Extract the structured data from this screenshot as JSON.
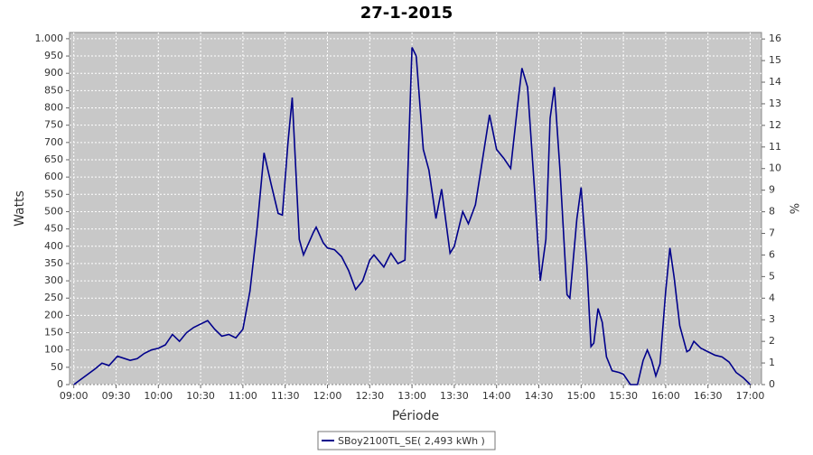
{
  "chart_data": {
    "type": "line",
    "title": "27-1-2015",
    "xlabel": "Période",
    "ylabel": "Watts",
    "y2label": "%",
    "x": [
      "09:00",
      "09:05",
      "09:10",
      "09:15",
      "09:20",
      "09:25",
      "09:31",
      "09:40",
      "09:45",
      "09:50",
      "09:55",
      "10:00",
      "10:05",
      "10:10",
      "10:15",
      "10:20",
      "10:25",
      "10:30",
      "10:35",
      "10:40",
      "10:45",
      "10:50",
      "10:55",
      "11:00",
      "11:05",
      "11:10",
      "11:15",
      "11:20",
      "11:25",
      "11:28",
      "11:32",
      "11:35",
      "11:40",
      "11:43",
      "11:50",
      "11:52",
      "11:57",
      "12:00",
      "12:05",
      "12:10",
      "12:15",
      "12:20",
      "12:25",
      "12:30",
      "12:33",
      "12:40",
      "12:45",
      "12:50",
      "12:55",
      "13:00",
      "13:03",
      "13:08",
      "13:12",
      "13:17",
      "13:21",
      "13:27",
      "13:30",
      "13:36",
      "13:40",
      "13:45",
      "13:50",
      "13:55",
      "14:00",
      "14:05",
      "14:10",
      "14:15",
      "14:18",
      "14:22",
      "14:27",
      "14:31",
      "14:35",
      "14:38",
      "14:41",
      "14:45",
      "14:50",
      "14:52",
      "14:57",
      "15:00",
      "15:04",
      "15:07",
      "15:09",
      "15:12",
      "15:15",
      "15:18",
      "15:22",
      "15:27",
      "15:30",
      "15:35",
      "15:40",
      "15:44",
      "15:47",
      "15:50",
      "15:53",
      "15:56",
      "16:00",
      "16:03",
      "16:06",
      "16:10",
      "16:15",
      "16:17",
      "16:20",
      "16:25",
      "16:30",
      "16:35",
      "16:40",
      "16:45",
      "16:50",
      "16:55",
      "17:00"
    ],
    "series": [
      {
        "name": "SBoy2100TL_SE( 2,493 kWh )",
        "color": "#00008b",
        "values": [
          0,
          15,
          30,
          45,
          62,
          55,
          82,
          70,
          75,
          90,
          100,
          105,
          115,
          145,
          125,
          150,
          165,
          175,
          185,
          160,
          140,
          145,
          135,
          160,
          270,
          450,
          670,
          580,
          495,
          490,
          700,
          830,
          420,
          375,
          440,
          455,
          410,
          395,
          390,
          370,
          330,
          275,
          300,
          360,
          375,
          340,
          380,
          350,
          360,
          975,
          950,
          680,
          620,
          480,
          565,
          380,
          400,
          500,
          465,
          520,
          650,
          780,
          680,
          655,
          625,
          810,
          915,
          860,
          560,
          300,
          420,
          770,
          860,
          620,
          260,
          250,
          480,
          570,
          350,
          110,
          120,
          220,
          180,
          80,
          40,
          35,
          30,
          0,
          0,
          70,
          100,
          70,
          25,
          60,
          270,
          395,
          310,
          170,
          95,
          100,
          125,
          105,
          95,
          85,
          80,
          65,
          35,
          20,
          0
        ]
      }
    ],
    "xlim": [
      "08:57",
      "17:08"
    ],
    "xticks": [
      "09:00",
      "09:30",
      "10:00",
      "10:30",
      "11:00",
      "11:30",
      "12:00",
      "12:30",
      "13:00",
      "13:30",
      "14:00",
      "14:30",
      "15:00",
      "15:30",
      "16:00",
      "16:30",
      "17:00"
    ],
    "ylim": [
      0,
      1018
    ],
    "yticks": [
      0,
      50,
      100,
      150,
      200,
      250,
      300,
      350,
      400,
      450,
      500,
      550,
      600,
      650,
      700,
      750,
      800,
      850,
      900,
      950,
      {
        "value": 1000,
        "label": "1.000"
      }
    ],
    "y2lim": [
      0,
      16.3
    ],
    "y2ticks": [
      0,
      1,
      2,
      3,
      4,
      5,
      6,
      7,
      8,
      9,
      10,
      11,
      12,
      13,
      14,
      15,
      16
    ],
    "grid": true,
    "legend": "bottom"
  }
}
